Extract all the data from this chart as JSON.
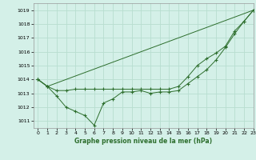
{
  "title": "Graphe pression niveau de la mer (hPa)",
  "bg_color": "#d4f0e8",
  "grid_color": "#b8ddd0",
  "line_color": "#2d6e2d",
  "marker_color": "#2d6e2d",
  "xlim": [
    -0.5,
    23
  ],
  "ylim": [
    1010.5,
    1019.5
  ],
  "yticks": [
    1011,
    1012,
    1013,
    1014,
    1015,
    1016,
    1017,
    1018,
    1019
  ],
  "xticks": [
    0,
    1,
    2,
    3,
    4,
    5,
    6,
    7,
    8,
    9,
    10,
    11,
    12,
    13,
    14,
    15,
    16,
    17,
    18,
    19,
    20,
    21,
    22,
    23
  ],
  "series1_x": [
    0,
    1,
    2,
    3,
    4,
    5,
    6,
    7,
    8,
    9,
    10,
    11,
    12,
    13,
    14,
    15,
    16,
    17,
    18,
    19,
    20,
    21,
    22,
    23
  ],
  "series1_y": [
    1014.0,
    1013.5,
    1012.8,
    1012.0,
    1011.7,
    1011.4,
    1010.7,
    1012.3,
    1012.6,
    1013.1,
    1013.1,
    1013.2,
    1013.0,
    1013.1,
    1013.1,
    1013.2,
    1013.7,
    1014.2,
    1014.7,
    1015.4,
    1016.3,
    1017.3,
    1018.2,
    1019.0
  ],
  "series2_x": [
    0,
    1,
    2,
    3,
    4,
    5,
    6,
    7,
    8,
    9,
    10,
    11,
    12,
    13,
    14,
    15,
    16,
    17,
    18,
    19,
    20,
    21,
    22,
    23
  ],
  "series2_y": [
    1014.0,
    1013.5,
    1013.2,
    1013.2,
    1013.3,
    1013.3,
    1013.3,
    1013.3,
    1013.3,
    1013.3,
    1013.3,
    1013.3,
    1013.3,
    1013.3,
    1013.3,
    1013.5,
    1014.2,
    1015.0,
    1015.5,
    1015.9,
    1016.4,
    1017.5,
    1018.2,
    1019.0
  ],
  "series3_x": [
    0,
    1,
    23
  ],
  "series3_y": [
    1014.0,
    1013.5,
    1019.0
  ]
}
